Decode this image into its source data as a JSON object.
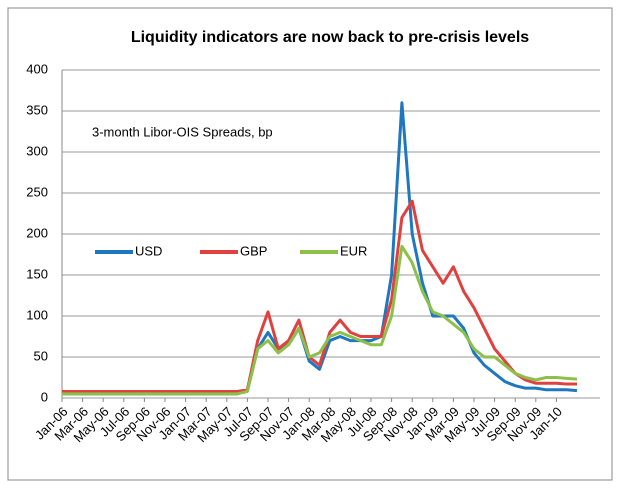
{
  "chart_data": {
    "type": "line",
    "title": "Liquidity indicators are now back to pre-crisis levels",
    "annotation": "3-month Libor-OIS Spreads, bp",
    "categories": [
      "Jan-06",
      null,
      "Mar-06",
      null,
      "May-06",
      null,
      "Jul-06",
      null,
      "Sep-06",
      null,
      "Nov-06",
      null,
      "Jan-07",
      null,
      "Mar-07",
      null,
      "May-07",
      null,
      "Jul-07",
      null,
      "Sep-07",
      null,
      "Nov-07",
      null,
      "Jan-08",
      null,
      "Mar-08",
      null,
      "May-08",
      null,
      "Jul-08",
      null,
      "Sep-08",
      null,
      "Nov-08",
      null,
      "Jan-09",
      null,
      "Mar-09",
      null,
      "May-09",
      null,
      "Jul-09",
      null,
      "Sep-09",
      null,
      "Nov-09",
      null,
      "Jan-10",
      null,
      null
    ],
    "series": [
      {
        "name": "USD",
        "color": "#1f77c0",
        "values": [
          5,
          5,
          5,
          5,
          5,
          5,
          5,
          5,
          5,
          5,
          5,
          5,
          5,
          5,
          5,
          5,
          5,
          5,
          10,
          60,
          80,
          60,
          65,
          85,
          45,
          35,
          70,
          75,
          70,
          70,
          70,
          75,
          150,
          360,
          200,
          140,
          100,
          100,
          100,
          85,
          55,
          40,
          30,
          20,
          15,
          12,
          12,
          10,
          10,
          10,
          9
        ]
      },
      {
        "name": "GBP",
        "color": "#e0413f",
        "values": [
          8,
          8,
          8,
          8,
          8,
          8,
          8,
          8,
          8,
          8,
          8,
          8,
          8,
          8,
          8,
          8,
          8,
          8,
          10,
          70,
          105,
          60,
          70,
          95,
          50,
          40,
          80,
          95,
          80,
          75,
          75,
          75,
          120,
          220,
          240,
          180,
          160,
          140,
          160,
          130,
          110,
          85,
          60,
          45,
          30,
          22,
          18,
          18,
          18,
          17,
          17
        ]
      },
      {
        "name": "EUR",
        "color": "#8cc04a",
        "values": [
          5,
          5,
          5,
          5,
          5,
          5,
          5,
          5,
          5,
          5,
          5,
          5,
          5,
          5,
          5,
          5,
          5,
          5,
          8,
          60,
          70,
          55,
          65,
          85,
          50,
          55,
          75,
          80,
          75,
          70,
          65,
          65,
          100,
          185,
          165,
          130,
          105,
          100,
          90,
          80,
          60,
          50,
          50,
          40,
          30,
          25,
          22,
          25,
          25,
          24,
          23
        ]
      }
    ],
    "ylim": [
      0,
      400
    ],
    "yticks": [
      0,
      50,
      100,
      150,
      200,
      250,
      300,
      350,
      400
    ],
    "grid": true
  }
}
